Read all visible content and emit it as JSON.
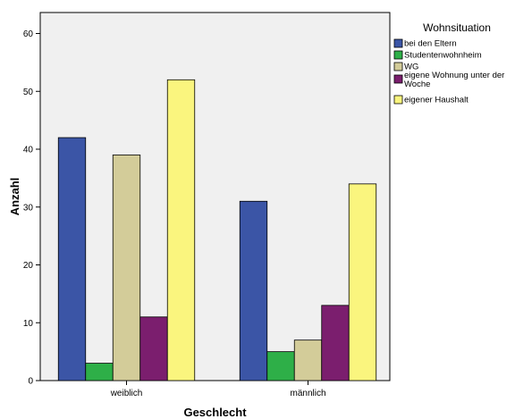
{
  "chart_data": {
    "type": "bar",
    "categories": [
      "weiblich",
      "männlich"
    ],
    "series": [
      {
        "name": "bei den Eltern",
        "color": "#3b55a6",
        "values": [
          42,
          31
        ]
      },
      {
        "name": "Studentenwohnheim",
        "color": "#2eaf48",
        "values": [
          3,
          5
        ]
      },
      {
        "name": "WG",
        "color": "#d3cc99",
        "values": [
          39,
          7
        ]
      },
      {
        "name": "eigene Wohnung unter der Woche",
        "color": "#7b1e6e",
        "values": [
          11,
          13
        ]
      },
      {
        "name": "eigener Haushalt",
        "color": "#faf57e",
        "values": [
          52,
          34
        ]
      }
    ],
    "xlabel": "Geschlecht",
    "ylabel": "Anzahl",
    "legend_title": "Wohnsituation",
    "legend_position": "right",
    "ylim": [
      0,
      60
    ],
    "yticks": [
      0,
      10,
      20,
      30,
      40,
      50,
      60
    ],
    "plot_background": "#f0f0f0",
    "grid": false
  }
}
